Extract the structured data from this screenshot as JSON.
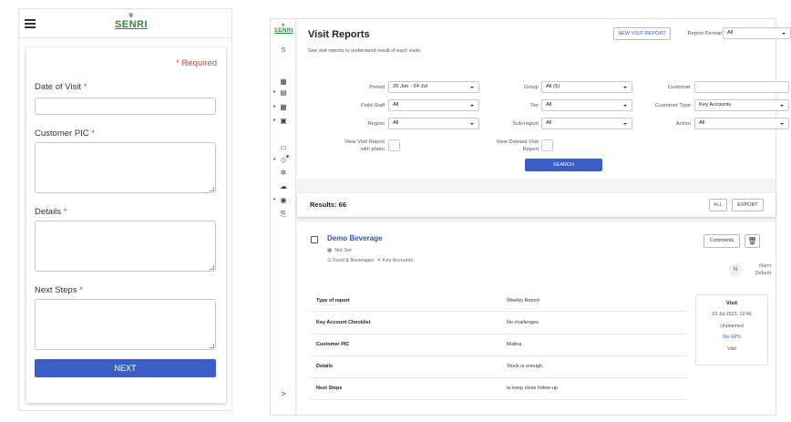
{
  "mobile": {
    "logo": "SENRI",
    "required_note": "* Required",
    "fields": [
      {
        "label": "Date of Visit",
        "star": "*",
        "value": ""
      },
      {
        "label": "Customer PIC",
        "star": "*",
        "value": ""
      },
      {
        "label": "Details",
        "star": "*",
        "value": ""
      },
      {
        "label": "Next Steps",
        "star": "*",
        "value": ""
      }
    ],
    "next_label": "NEXT"
  },
  "app": {
    "logo": "SENRI",
    "sidebar_letter": "S",
    "sidebar_icons": [
      "dashboard-icon",
      "calendar-icon",
      "reports-icon",
      "layers-icon",
      "chat-icon",
      "bell-icon",
      "settings-icon",
      "cloud-icon",
      "help-icon",
      "logout-icon"
    ],
    "sidebar_expand": ">",
    "title": "Visit Reports",
    "subtitle": "See visit reports to understand result of each visits.",
    "new_visit_report": "NEW VISIT REPORT",
    "report_format": {
      "label": "Report Format",
      "value": "All"
    },
    "filters": {
      "period": {
        "label": "Period",
        "value": "25 Jun - 24 Jul"
      },
      "group": {
        "label": "Group",
        "value": "All (5)"
      },
      "customer": {
        "label": "Customer",
        "value": ""
      },
      "field_staff": {
        "label": "Field Staff",
        "value": "All"
      },
      "tier": {
        "label": "Tier",
        "value": "All"
      },
      "customer_type": {
        "label": "Customer Type",
        "value": "Key Accounts"
      },
      "region": {
        "label": "Region",
        "value": "All"
      },
      "sub_region": {
        "label": "Sub-region",
        "value": "All"
      },
      "action": {
        "label": "Action",
        "value": "All"
      },
      "view_photo": {
        "label_1": "View Visit Report",
        "label_2": "with photo"
      },
      "view_deleted": {
        "label_1": "View Deleted Visit",
        "label_2": "Report"
      }
    },
    "search_label": "SEARCH",
    "results": "Results: 66",
    "all_label": "ALL",
    "export_label": "EXPORT",
    "card": {
      "customer": "Demo Beverage",
      "segment": "Not Set",
      "category": "Food & Beverages",
      "account_type": "Key Accounts",
      "comments_label": "Comments",
      "avatar": "N",
      "staff_name": "Nami",
      "staff_group": "Default",
      "rows": [
        {
          "label": "Type of report",
          "value": "Weekly Report"
        },
        {
          "label": "Key Account Checklist",
          "value": "No challenges"
        },
        {
          "label": "Customer PIC",
          "value": "Malina"
        },
        {
          "label": "Details",
          "value": "Stock is enough."
        },
        {
          "label": "Next Steps",
          "value": "to keep close follow-up"
        }
      ],
      "visit": {
        "title": "Visit",
        "datetime": "23 Jul 2023, 12:46",
        "status": "Unplanned",
        "gps": "No GPS",
        "type": "Visit"
      }
    }
  }
}
